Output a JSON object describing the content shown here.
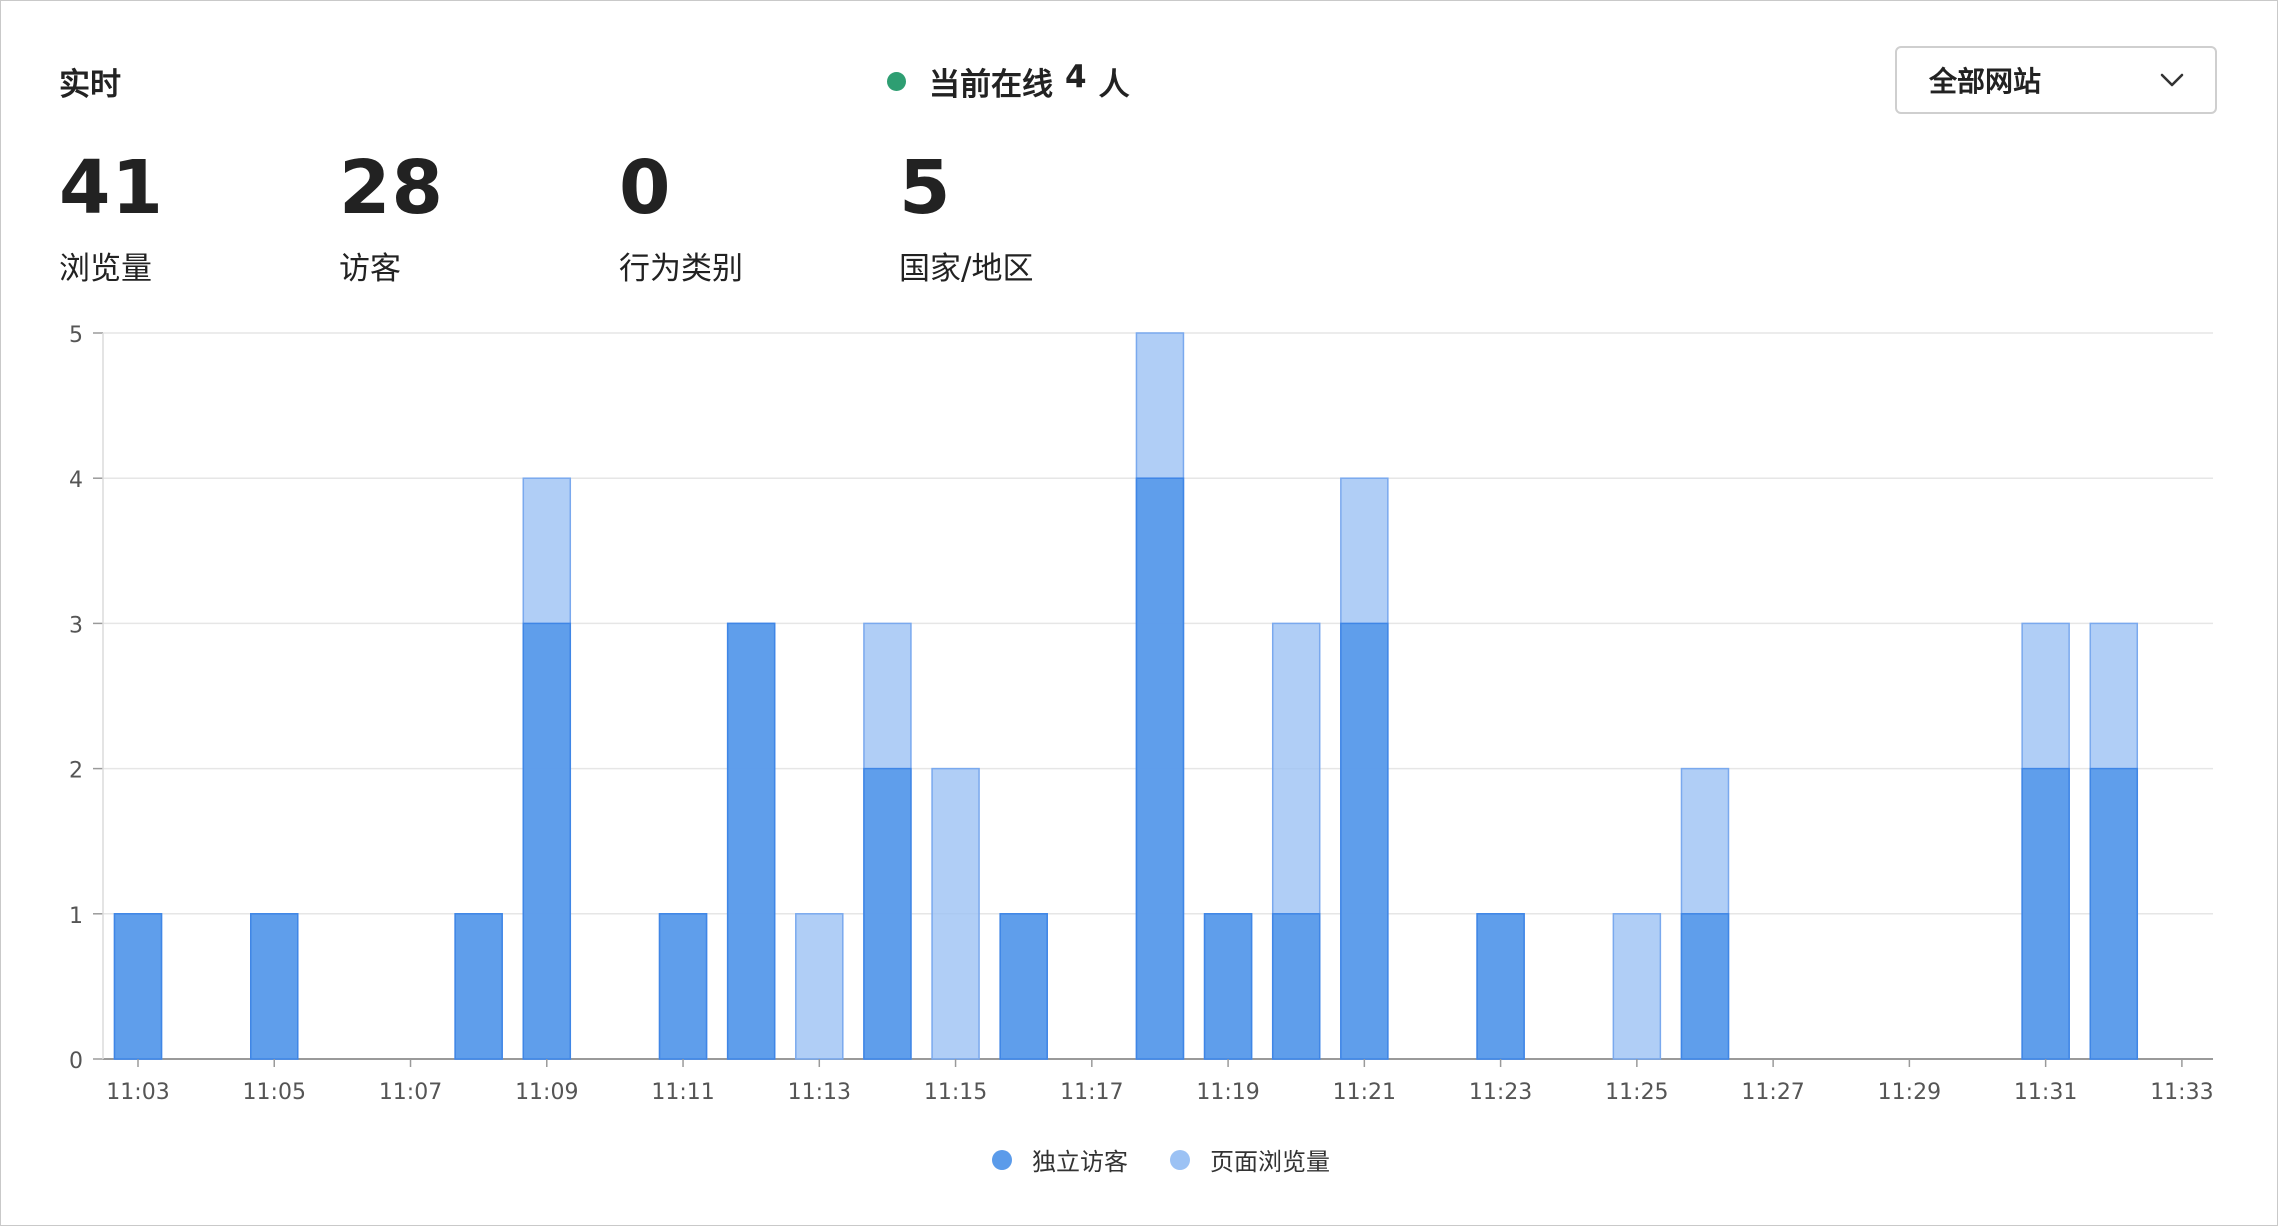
{
  "header": {
    "title": "实时",
    "online_label": "当前在线",
    "online_count": "4",
    "online_unit": "人",
    "online_color": "#2e9e72",
    "site_select": "全部网站"
  },
  "metrics": [
    {
      "value": "41",
      "label": "浏览量"
    },
    {
      "value": "28",
      "label": "访客"
    },
    {
      "value": "0",
      "label": "行为类别"
    },
    {
      "value": "5",
      "label": "国家/地区"
    }
  ],
  "legend": [
    {
      "label": "独立访客",
      "color": "#5b9bea"
    },
    {
      "label": "页面浏览量",
      "color": "#9cc2f4"
    }
  ],
  "chart_data": {
    "type": "bar",
    "stacking": "overlay",
    "ylim": [
      0,
      5
    ],
    "yticks": [
      0,
      1,
      2,
      3,
      4,
      5
    ],
    "grid": true,
    "legend_position": "bottom",
    "xticks": [
      "11:03",
      "11:05",
      "11:07",
      "11:09",
      "11:11",
      "11:13",
      "11:15",
      "11:17",
      "11:19",
      "11:21",
      "11:23",
      "11:25",
      "11:27",
      "11:29",
      "11:31",
      "11:33"
    ],
    "categories": [
      "11:03",
      "11:04",
      "11:05",
      "11:06",
      "11:07",
      "11:08",
      "11:09",
      "11:10",
      "11:11",
      "11:12",
      "11:13",
      "11:14",
      "11:15",
      "11:16",
      "11:17",
      "11:18",
      "11:19",
      "11:20",
      "11:21",
      "11:22",
      "11:23",
      "11:24",
      "11:25",
      "11:26",
      "11:27",
      "11:28",
      "11:29",
      "11:30",
      "11:31",
      "11:32"
    ],
    "series": [
      {
        "name": "独立访客",
        "color": "#5b9bea",
        "values": [
          1,
          0,
          1,
          0,
          0,
          1,
          3,
          0,
          1,
          3,
          0,
          2,
          0,
          1,
          0,
          4,
          1,
          1,
          3,
          0,
          1,
          0,
          0,
          1,
          0,
          0,
          0,
          0,
          2,
          2
        ]
      },
      {
        "name": "页面浏览量",
        "color": "#9cc2f4",
        "values": [
          1,
          0,
          1,
          0,
          0,
          1,
          4,
          0,
          1,
          3,
          1,
          3,
          2,
          1,
          0,
          5,
          1,
          3,
          4,
          0,
          1,
          0,
          1,
          2,
          0,
          0,
          0,
          0,
          3,
          3
        ]
      }
    ]
  }
}
